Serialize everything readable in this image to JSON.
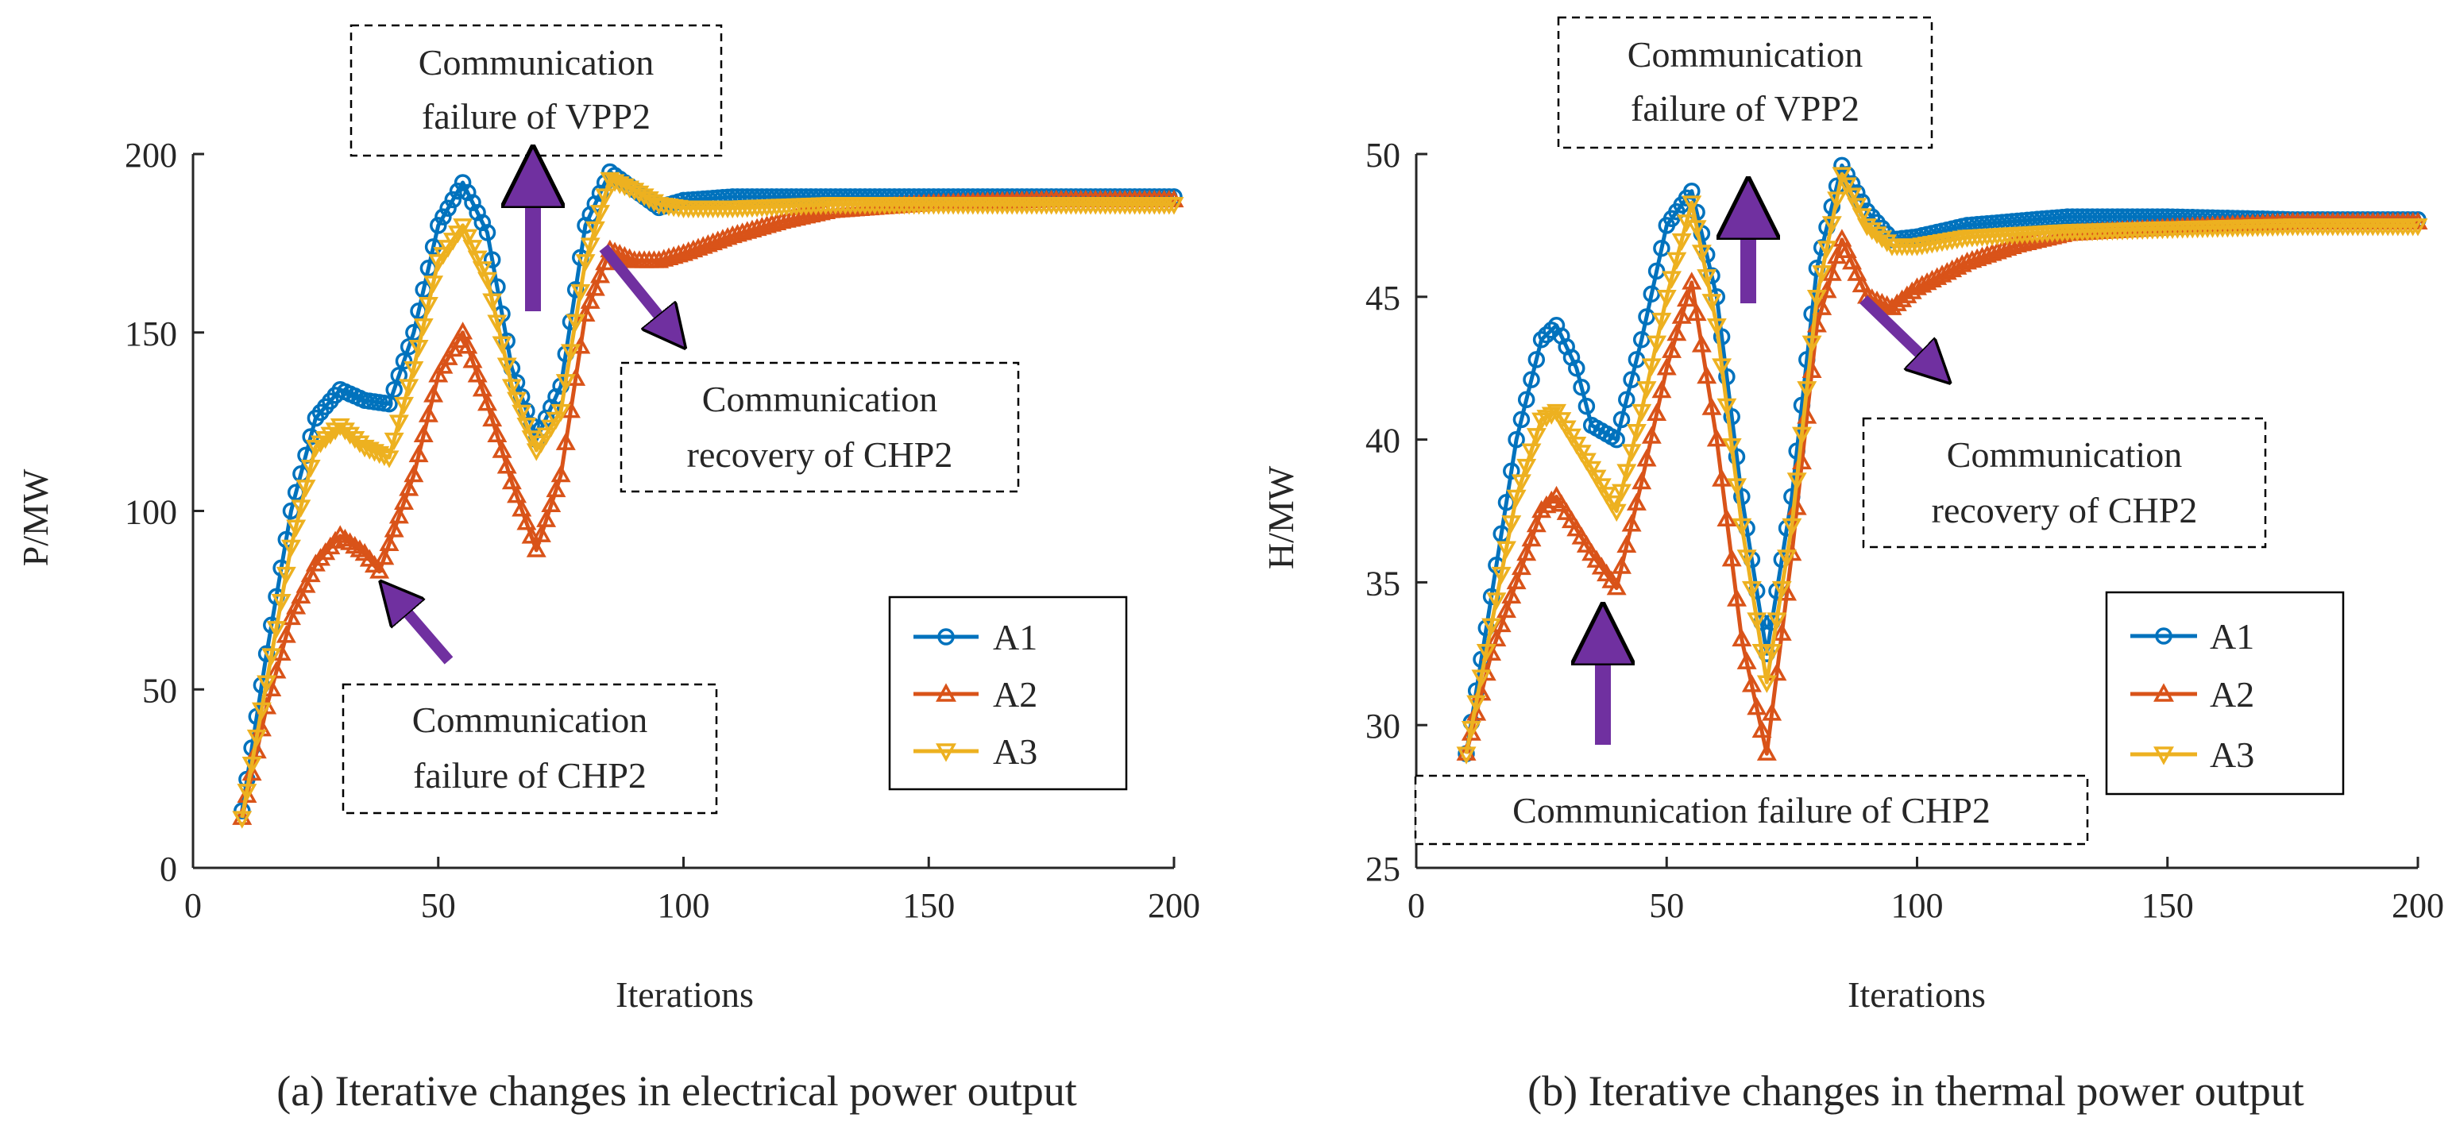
{
  "chart_data": [
    {
      "type": "line",
      "caption": "(a) Iterative changes in electrical power output",
      "xlabel": "Iterations",
      "ylabel": "P/MW",
      "xlim": [
        0,
        200
      ],
      "ylim": [
        0,
        200
      ],
      "xticks": [
        0,
        50,
        100,
        150,
        200
      ],
      "yticks": [
        0,
        50,
        100,
        150,
        200
      ],
      "grid": false,
      "legend_position": "bottom-right",
      "series": [
        {
          "name": "A1",
          "color": "#0072BD",
          "marker": "circle",
          "points": [
            [
              10,
              16
            ],
            [
              15,
              60
            ],
            [
              20,
              100
            ],
            [
              25,
              126
            ],
            [
              30,
              134
            ],
            [
              35,
              131
            ],
            [
              40,
              130
            ],
            [
              45,
              150
            ],
            [
              50,
              180
            ],
            [
              55,
              192
            ],
            [
              60,
              178
            ],
            [
              65,
              140
            ],
            [
              70,
              120
            ],
            [
              75,
              135
            ],
            [
              80,
              180
            ],
            [
              85,
              195
            ],
            [
              90,
              190
            ],
            [
              95,
              185
            ],
            [
              100,
              187
            ],
            [
              110,
              188
            ],
            [
              130,
              188
            ],
            [
              150,
              188
            ],
            [
              175,
              188
            ],
            [
              200,
              188
            ]
          ]
        },
        {
          "name": "A2",
          "color": "#D95319",
          "marker": "triangle-up",
          "points": [
            [
              10,
              14
            ],
            [
              15,
              45
            ],
            [
              20,
              70
            ],
            [
              25,
              85
            ],
            [
              30,
              93
            ],
            [
              35,
              88
            ],
            [
              38,
              83
            ],
            [
              45,
              110
            ],
            [
              50,
              138
            ],
            [
              55,
              150
            ],
            [
              60,
              130
            ],
            [
              65,
              108
            ],
            [
              70,
              89
            ],
            [
              75,
              110
            ],
            [
              80,
              155
            ],
            [
              85,
              173
            ],
            [
              90,
              170
            ],
            [
              95,
              170
            ],
            [
              100,
              172
            ],
            [
              110,
              177
            ],
            [
              120,
              181
            ],
            [
              130,
              184
            ],
            [
              140,
              185
            ],
            [
              150,
              186
            ],
            [
              175,
              187
            ],
            [
              200,
              187
            ]
          ]
        },
        {
          "name": "A3",
          "color": "#EDB120",
          "marker": "triangle-down",
          "points": [
            [
              10,
              14
            ],
            [
              15,
              52
            ],
            [
              20,
              90
            ],
            [
              25,
              118
            ],
            [
              30,
              124
            ],
            [
              35,
              118
            ],
            [
              40,
              115
            ],
            [
              45,
              140
            ],
            [
              50,
              170
            ],
            [
              55,
              180
            ],
            [
              60,
              165
            ],
            [
              65,
              135
            ],
            [
              70,
              117
            ],
            [
              75,
              128
            ],
            [
              80,
              170
            ],
            [
              85,
              193
            ],
            [
              90,
              190
            ],
            [
              95,
              186
            ],
            [
              100,
              185
            ],
            [
              110,
              185
            ],
            [
              130,
              186
            ],
            [
              150,
              186
            ],
            [
              175,
              186
            ],
            [
              200,
              186
            ]
          ]
        }
      ],
      "annotations": [
        {
          "text_lines": [
            "Communication",
            "failure of VPP2"
          ]
        },
        {
          "text_lines": [
            "Communication",
            "recovery of CHP2"
          ]
        },
        {
          "text_lines": [
            "Communication",
            "failure of CHP2"
          ]
        }
      ],
      "arrow_color": "#7030A0"
    },
    {
      "type": "line",
      "caption": "(b) Iterative changes in thermal power output",
      "xlabel": "Iterations",
      "ylabel": "H/MW",
      "xlim": [
        0,
        200
      ],
      "ylim": [
        25,
        50
      ],
      "xticks": [
        0,
        50,
        100,
        150,
        200
      ],
      "yticks": [
        25,
        30,
        35,
        40,
        45,
        50
      ],
      "grid": false,
      "legend_position": "bottom-right",
      "series": [
        {
          "name": "A1",
          "color": "#0072BD",
          "marker": "circle",
          "points": [
            [
              10,
              29
            ],
            [
              15,
              34.5
            ],
            [
              20,
              40
            ],
            [
              25,
              43.5
            ],
            [
              28,
              44
            ],
            [
              32,
              42.5
            ],
            [
              35,
              40.5
            ],
            [
              40,
              40
            ],
            [
              45,
              43.5
            ],
            [
              50,
              47.5
            ],
            [
              55,
              48.7
            ],
            [
              60,
              45
            ],
            [
              65,
              38
            ],
            [
              70,
              32.5
            ],
            [
              75,
              38
            ],
            [
              80,
              46
            ],
            [
              85,
              49.6
            ],
            [
              90,
              48
            ],
            [
              95,
              47
            ],
            [
              100,
              47.1
            ],
            [
              110,
              47.5
            ],
            [
              130,
              47.8
            ],
            [
              150,
              47.8
            ],
            [
              175,
              47.7
            ],
            [
              200,
              47.7
            ]
          ]
        },
        {
          "name": "A2",
          "color": "#D95319",
          "marker": "triangle-up",
          "points": [
            [
              10,
              29
            ],
            [
              15,
              32.5
            ],
            [
              20,
              35
            ],
            [
              25,
              37.5
            ],
            [
              28,
              38
            ],
            [
              35,
              36
            ],
            [
              40,
              34.8
            ],
            [
              45,
              38.5
            ],
            [
              50,
              42.5
            ],
            [
              55,
              45.5
            ],
            [
              60,
              40
            ],
            [
              65,
              33
            ],
            [
              70,
              29
            ],
            [
              75,
              36
            ],
            [
              80,
              44
            ],
            [
              85,
              47
            ],
            [
              90,
              45
            ],
            [
              95,
              44.6
            ],
            [
              100,
              45.3
            ],
            [
              110,
              46.2
            ],
            [
              120,
              46.8
            ],
            [
              130,
              47.2
            ],
            [
              150,
              47.4
            ],
            [
              175,
              47.6
            ],
            [
              200,
              47.6
            ]
          ]
        },
        {
          "name": "A3",
          "color": "#EDB120",
          "marker": "triangle-down",
          "points": [
            [
              10,
              29
            ],
            [
              15,
              33.5
            ],
            [
              20,
              38
            ],
            [
              25,
              40.7
            ],
            [
              28,
              41
            ],
            [
              35,
              39
            ],
            [
              40,
              37.5
            ],
            [
              45,
              41
            ],
            [
              50,
              45
            ],
            [
              55,
              48.3
            ],
            [
              60,
              44
            ],
            [
              65,
              37
            ],
            [
              70,
              31.5
            ],
            [
              75,
              37
            ],
            [
              80,
              45
            ],
            [
              85,
              49.3
            ],
            [
              90,
              47.5
            ],
            [
              95,
              46.8
            ],
            [
              100,
              46.8
            ],
            [
              110,
              47.1
            ],
            [
              130,
              47.3
            ],
            [
              150,
              47.4
            ],
            [
              175,
              47.5
            ],
            [
              200,
              47.5
            ]
          ]
        }
      ],
      "annotations": [
        {
          "text_lines": [
            "Communication",
            "failure of VPP2"
          ]
        },
        {
          "text_lines": [
            "Communication",
            "recovery of CHP2"
          ]
        },
        {
          "text_lines": [
            "Communication failure of CHP2"
          ]
        }
      ],
      "arrow_color": "#7030A0"
    }
  ]
}
